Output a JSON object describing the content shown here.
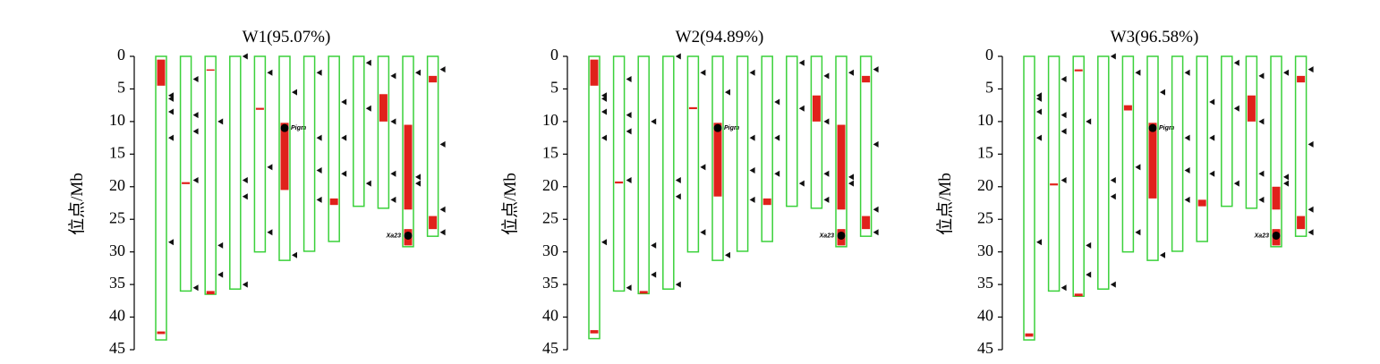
{
  "chart_data": [
    {
      "type": "chromosome-map",
      "title": "W1(95.07%)",
      "ylabel": "位点/Mb",
      "ylim": [
        0,
        45
      ],
      "yticks": [
        0,
        5,
        10,
        15,
        20,
        25,
        30,
        35,
        40,
        45
      ],
      "chromosomes": [
        {
          "length": 43.5,
          "segments": [
            [
              0.5,
              4.5
            ],
            [
              42.2,
              42.6
            ]
          ],
          "markers": [
            6,
            6.5,
            8.5,
            12.5,
            28.5
          ]
        },
        {
          "length": 36,
          "segments": [
            [
              19.3,
              19.6
            ]
          ],
          "markers": [
            3.5,
            9,
            11.5,
            19,
            35.5
          ]
        },
        {
          "length": 36.5,
          "segments": [
            [
              2,
              2.2
            ],
            [
              36,
              36.5
            ]
          ],
          "markers": [
            10,
            29,
            33.5
          ]
        },
        {
          "length": 35.7,
          "segments": [],
          "markers": [
            0,
            19,
            21.5,
            35
          ]
        },
        {
          "length": 30,
          "segments": [
            [
              7.9,
              8.2
            ]
          ],
          "markers": [
            2.5,
            17,
            27
          ]
        },
        {
          "length": 31.3,
          "segments": [
            [
              10.2,
              20.5
            ]
          ],
          "markers": [
            5.5,
            30.5
          ],
          "gene": {
            "label": "Pigm",
            "position": 11
          }
        },
        {
          "length": 29.9,
          "segments": [],
          "markers": [
            2.5,
            12.5,
            17.5,
            22
          ]
        },
        {
          "length": 28.4,
          "segments": [
            [
              21.8,
              22.8
            ]
          ],
          "markers": [
            7,
            12.5,
            18
          ]
        },
        {
          "length": 23,
          "segments": [],
          "markers": [
            1,
            8,
            19.5
          ]
        },
        {
          "length": 23.3,
          "segments": [
            [
              5.8,
              10
            ]
          ],
          "markers": [
            3,
            10,
            18,
            22
          ]
        },
        {
          "length": 29.2,
          "segments": [
            [
              10.5,
              23.5
            ],
            [
              26.5,
              29
            ]
          ],
          "markers": [
            2.5,
            18.5,
            19.5
          ],
          "gene": {
            "label": "Xa23",
            "position": 27.5
          }
        },
        {
          "length": 27.6,
          "segments": [
            [
              3,
              4
            ],
            [
              24.5,
              26.5
            ]
          ],
          "markers": [
            2,
            13.5,
            23.5,
            27
          ]
        }
      ]
    },
    {
      "type": "chromosome-map",
      "title": "W2(94.89%)",
      "ylabel": "位点/Mb",
      "ylim": [
        0,
        45
      ],
      "yticks": [
        0,
        5,
        10,
        15,
        20,
        25,
        30,
        35,
        40,
        45
      ],
      "chromosomes": [
        {
          "length": 43.3,
          "segments": [
            [
              0.5,
              4.5
            ],
            [
              42,
              42.5
            ]
          ],
          "markers": [
            6,
            6.5,
            8.5,
            12.5,
            28.5
          ]
        },
        {
          "length": 36,
          "segments": [
            [
              19.2,
              19.5
            ]
          ],
          "markers": [
            3.5,
            9,
            11.5,
            19,
            35.5
          ]
        },
        {
          "length": 36.4,
          "segments": [
            [
              36,
              36.4
            ]
          ],
          "markers": [
            10,
            29,
            33.5
          ]
        },
        {
          "length": 35.7,
          "segments": [],
          "markers": [
            0,
            19,
            21.5,
            35
          ]
        },
        {
          "length": 30,
          "segments": [
            [
              7.8,
              8.1
            ]
          ],
          "markers": [
            2.5,
            17,
            27
          ]
        },
        {
          "length": 31.3,
          "segments": [
            [
              10.2,
              21.5
            ]
          ],
          "markers": [
            5.5,
            30.5
          ],
          "gene": {
            "label": "Pigm",
            "position": 11
          }
        },
        {
          "length": 29.9,
          "segments": [],
          "markers": [
            2.5,
            12.5,
            17.5,
            22
          ]
        },
        {
          "length": 28.4,
          "segments": [
            [
              21.8,
              22.8
            ]
          ],
          "markers": [
            7,
            12.5,
            18
          ]
        },
        {
          "length": 23,
          "segments": [],
          "markers": [
            1,
            8,
            19.5
          ]
        },
        {
          "length": 23.3,
          "segments": [
            [
              6,
              10
            ]
          ],
          "markers": [
            3,
            10,
            18,
            22
          ]
        },
        {
          "length": 29.2,
          "segments": [
            [
              10.5,
              23.5
            ],
            [
              26.5,
              29
            ]
          ],
          "markers": [
            2.5,
            18.5,
            19.5
          ],
          "gene": {
            "label": "Xa23",
            "position": 27.5
          }
        },
        {
          "length": 27.6,
          "segments": [
            [
              3,
              4
            ],
            [
              24.5,
              26.5
            ]
          ],
          "markers": [
            2,
            13.5,
            23.5,
            27
          ]
        }
      ]
    },
    {
      "type": "chromosome-map",
      "title": "W3(96.58%)",
      "ylabel": "位点/Mb",
      "ylim": [
        0,
        45
      ],
      "yticks": [
        0,
        5,
        10,
        15,
        20,
        25,
        30,
        35,
        40,
        45
      ],
      "chromosomes": [
        {
          "length": 43.5,
          "segments": [
            [
              42.5,
              43
            ]
          ],
          "markers": [
            6,
            6.5,
            8.5,
            12.5,
            28.5
          ]
        },
        {
          "length": 36,
          "segments": [
            [
              19.5,
              19.8
            ]
          ],
          "markers": [
            3.5,
            9,
            11.5,
            19,
            35.5
          ]
        },
        {
          "length": 36.8,
          "segments": [
            [
              2,
              2.3
            ],
            [
              36.4,
              36.8
            ]
          ],
          "markers": [
            10,
            29,
            33.5
          ]
        },
        {
          "length": 35.7,
          "segments": [],
          "markers": [
            0,
            19,
            21.5,
            35
          ]
        },
        {
          "length": 30,
          "segments": [
            [
              7.5,
              8.3
            ]
          ],
          "markers": [
            2.5,
            17,
            27
          ]
        },
        {
          "length": 31.3,
          "segments": [
            [
              10.2,
              21.8
            ]
          ],
          "markers": [
            5.5,
            30.5
          ],
          "gene": {
            "label": "Pigm",
            "position": 11
          }
        },
        {
          "length": 29.9,
          "segments": [],
          "markers": [
            2.5,
            12.5,
            17.5,
            22
          ]
        },
        {
          "length": 28.4,
          "segments": [
            [
              22,
              23
            ]
          ],
          "markers": [
            7,
            12.5,
            18
          ]
        },
        {
          "length": 23,
          "segments": [],
          "markers": [
            1,
            8,
            19.5
          ]
        },
        {
          "length": 23.3,
          "segments": [
            [
              6,
              10
            ]
          ],
          "markers": [
            3,
            10,
            18,
            22
          ]
        },
        {
          "length": 29.2,
          "segments": [
            [
              20,
              23.5
            ],
            [
              26.5,
              29
            ]
          ],
          "markers": [
            2.5,
            18.5,
            19.5
          ],
          "gene": {
            "label": "Xa23",
            "position": 27.5
          }
        },
        {
          "length": 27.6,
          "segments": [
            [
              3,
              4
            ],
            [
              24.5,
              26.5
            ]
          ],
          "markers": [
            2,
            13.5,
            23.5,
            27
          ]
        }
      ]
    }
  ]
}
